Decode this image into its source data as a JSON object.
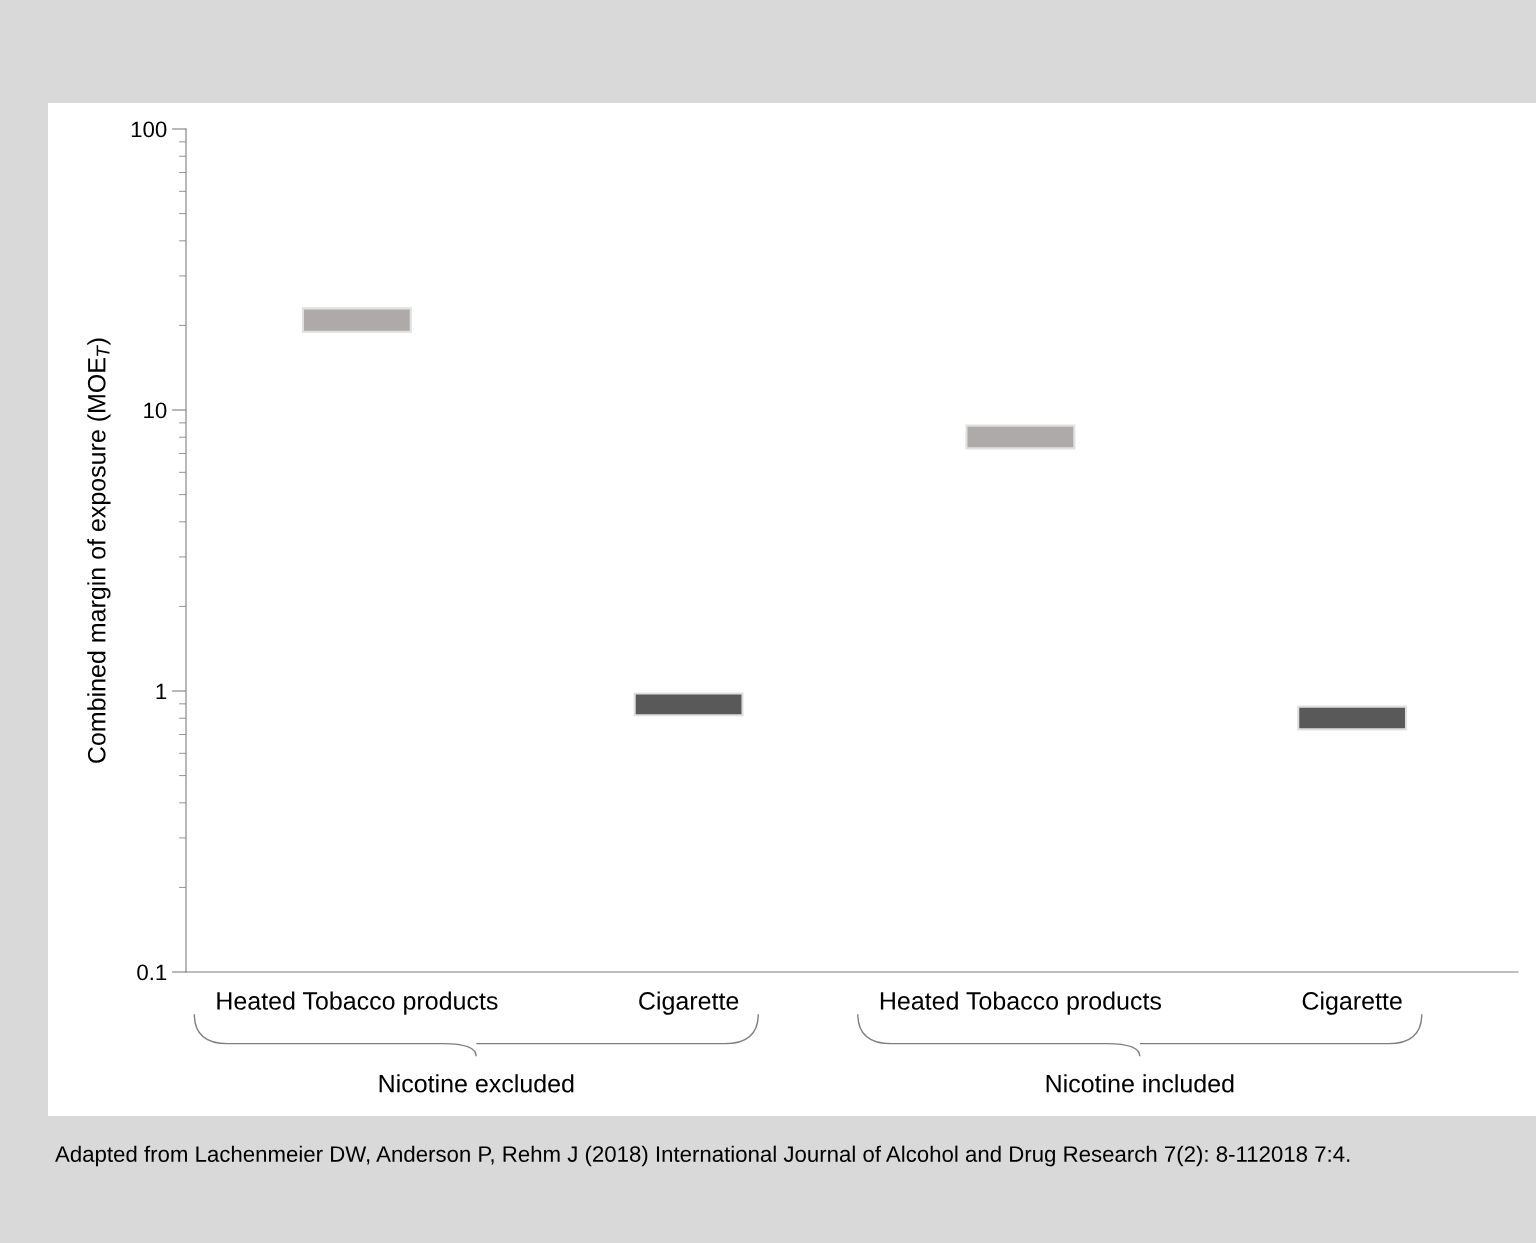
{
  "chart_data": {
    "type": "bar",
    "ylabel": "Combined margin of exposure (MOE$_{T}$)",
    "categories": [
      "Heated Tobacco products",
      "Cigarette",
      "Heated Tobacco products",
      "Cigarette"
    ],
    "base": [
      19,
      0.82,
      7.3,
      0.73
    ],
    "values": [
      4,
      0.16,
      1.5,
      0.15
    ],
    "colors": [
      "#aeaaaa",
      "#595959",
      "#aeaaaa",
      "#595959"
    ],
    "log": true,
    "ylim": [
      0.1,
      100
    ],
    "yticks": [
      0.1,
      1,
      10,
      100
    ],
    "grid": false,
    "annotations": [
      "Nicotine excluded",
      "Nicotine included",
      "Adapted from Lachenmeier DW, Anderson P, Rehm J (2018) International Journal of Alcohol and Drug Research 7(2): 8-112018 7:4."
    ]
  }
}
